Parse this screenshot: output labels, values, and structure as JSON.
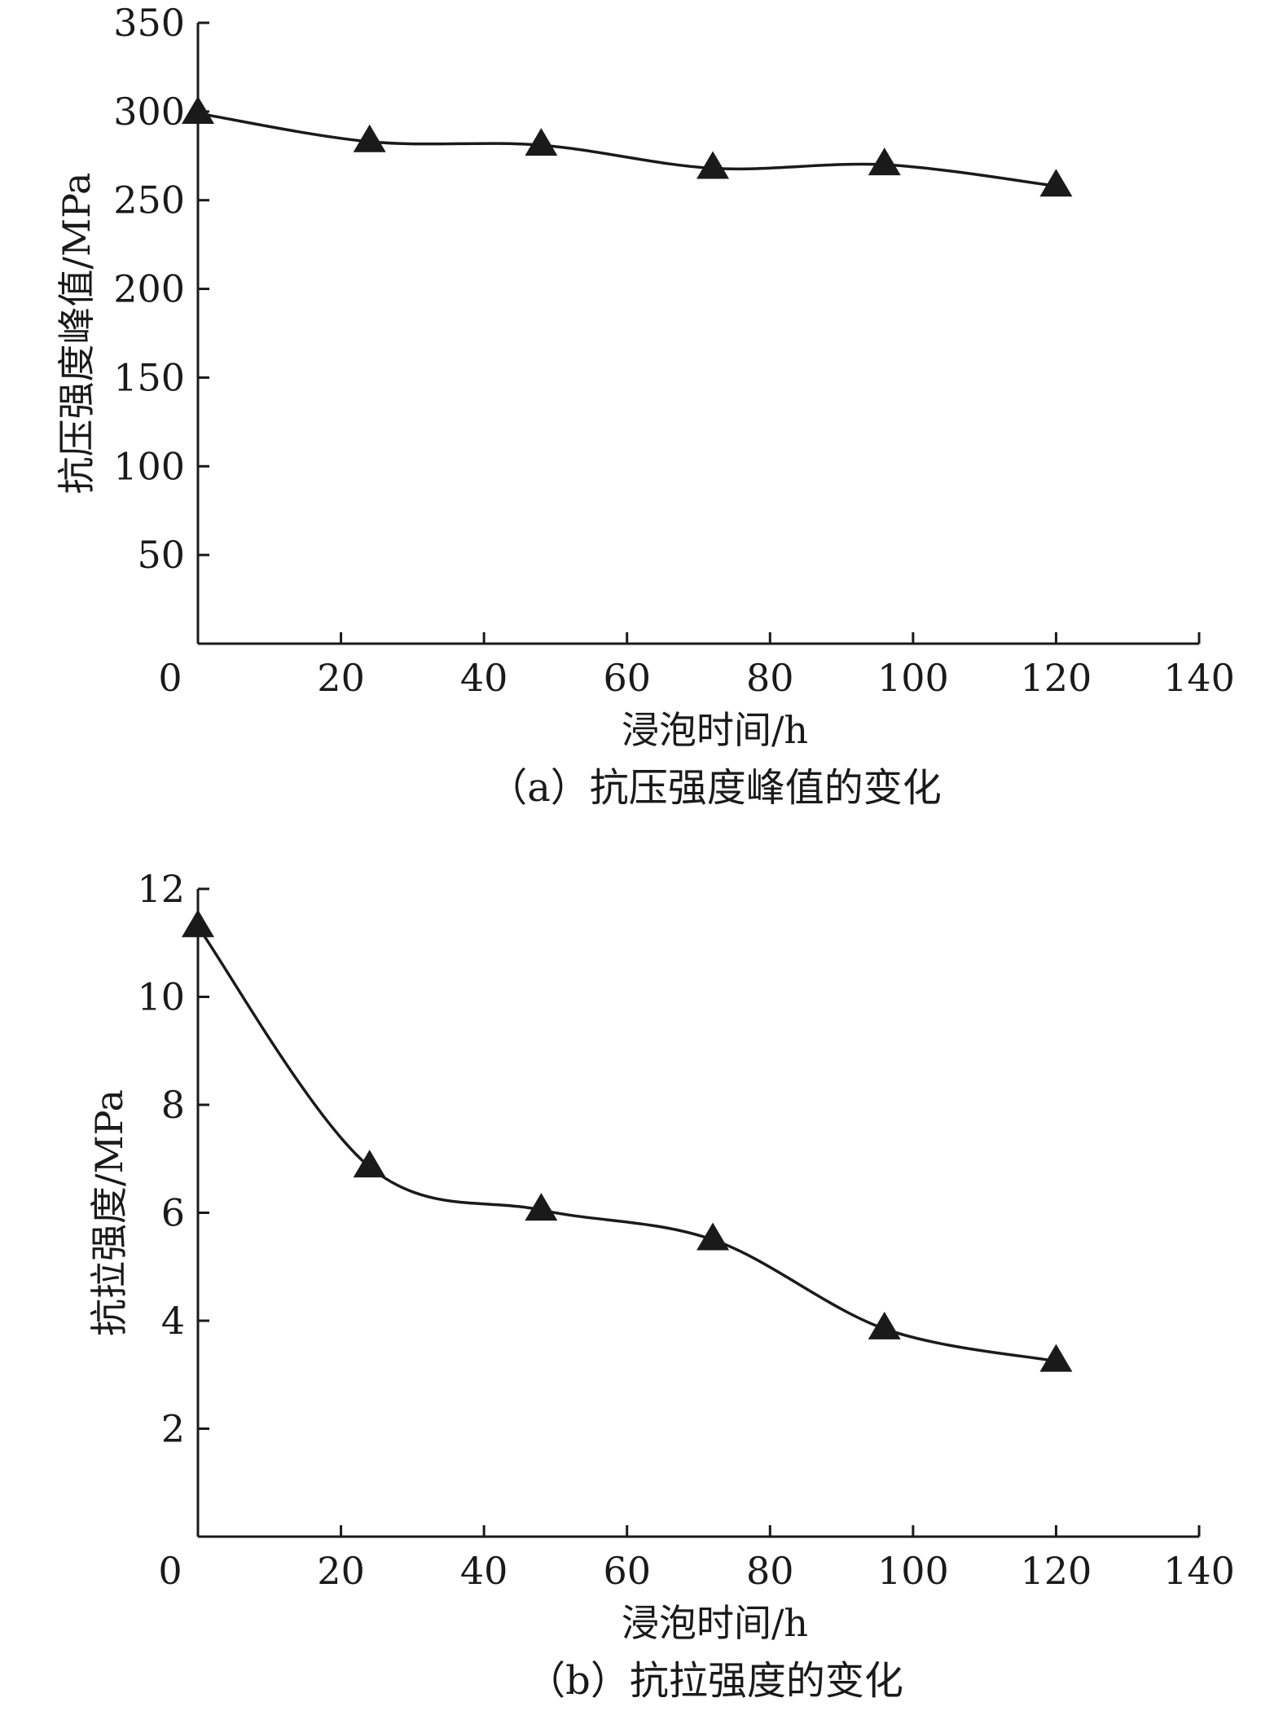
{
  "chart_data": [
    {
      "type": "line",
      "caption": "（a）抗压强度峰值的变化",
      "xlabel": "浸泡时间/h",
      "ylabel": "抗压强度峰值/MPa",
      "xlim": [
        0,
        140
      ],
      "ylim": [
        0,
        350
      ],
      "xticks": [
        "0",
        "20",
        "40",
        "60",
        "80",
        "100",
        "120",
        "140"
      ],
      "yticks": [
        "50",
        "100",
        "150",
        "200",
        "250",
        "300",
        "350"
      ],
      "marker": "triangle",
      "grid": false,
      "series": [
        {
          "x": [
            0,
            24,
            48,
            72,
            96,
            120
          ],
          "values": [
            299,
            283,
            281,
            268,
            270,
            258
          ]
        }
      ]
    },
    {
      "type": "line",
      "caption": "（b）抗拉强度的变化",
      "xlabel": "浸泡时间/h",
      "ylabel": "抗拉强度/MPa",
      "xlim": [
        0,
        140
      ],
      "ylim": [
        0,
        12
      ],
      "xticks": [
        "0",
        "20",
        "40",
        "60",
        "80",
        "100",
        "120",
        "140"
      ],
      "yticks": [
        "2",
        "4",
        "6",
        "8",
        "10",
        "12"
      ],
      "marker": "triangle",
      "grid": false,
      "series": [
        {
          "x": [
            0,
            24,
            48,
            72,
            96,
            120
          ],
          "values": [
            11.3,
            6.85,
            6.05,
            5.5,
            3.85,
            3.25
          ]
        }
      ]
    }
  ]
}
